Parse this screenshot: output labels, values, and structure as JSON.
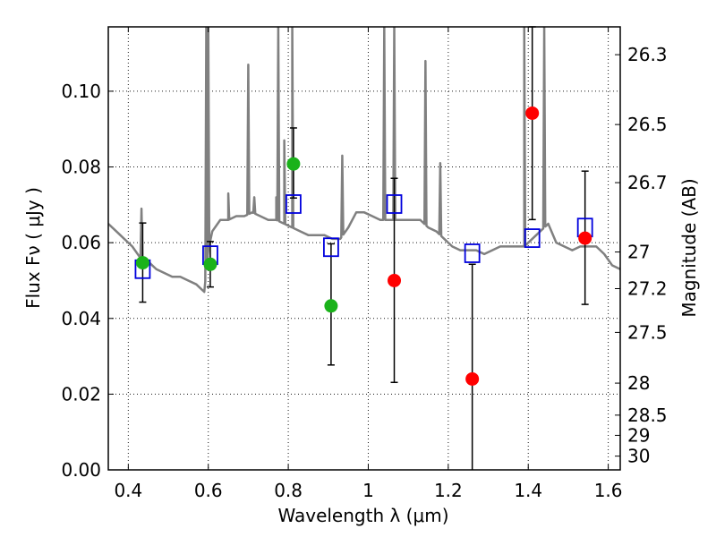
{
  "chart_data": {
    "type": "scatter",
    "xlabel": "Wavelength  λ (μm)",
    "ylabel": "Flux  Fν  ( μJy )",
    "y2label": "Magnitude (AB)",
    "xlim": [
      0.35,
      1.63
    ],
    "ylim": [
      0.0,
      0.117
    ],
    "grid": true,
    "x_ticks": [
      {
        "value": 0.4,
        "label": "0.4"
      },
      {
        "value": 0.6,
        "label": "0.6"
      },
      {
        "value": 0.8,
        "label": "0.8"
      },
      {
        "value": 1.0,
        "label": "1"
      },
      {
        "value": 1.2,
        "label": "1.2"
      },
      {
        "value": 1.4,
        "label": "1.4"
      },
      {
        "value": 1.6,
        "label": "1.6"
      }
    ],
    "y_ticks": [
      {
        "value": 0.0,
        "label": "0.00"
      },
      {
        "value": 0.02,
        "label": "0.02"
      },
      {
        "value": 0.04,
        "label": "0.04"
      },
      {
        "value": 0.06,
        "label": "0.06"
      },
      {
        "value": 0.08,
        "label": "0.08"
      },
      {
        "value": 0.1,
        "label": "0.10"
      }
    ],
    "y2_ticks": [
      {
        "value": 26.3,
        "label": "26.3"
      },
      {
        "value": 26.5,
        "label": "26.5"
      },
      {
        "value": 26.7,
        "label": "26.7"
      },
      {
        "value": 27.0,
        "label": "27"
      },
      {
        "value": 27.2,
        "label": "27.2"
      },
      {
        "value": 27.5,
        "label": "27.5"
      },
      {
        "value": 28.0,
        "label": "28"
      },
      {
        "value": 28.5,
        "label": "28.5"
      },
      {
        "value": 29.0,
        "label": "29"
      },
      {
        "value": 30.0,
        "label": "30"
      }
    ],
    "colors": {
      "spectrum": "#808080",
      "detection": "#1ab21a",
      "upper": "#ff0000",
      "model": "#0000dd",
      "errorbar": "#000000"
    },
    "spectrum": {
      "x": [
        0.35,
        0.37,
        0.39,
        0.41,
        0.43,
        0.45,
        0.47,
        0.49,
        0.51,
        0.53,
        0.55,
        0.57,
        0.58,
        0.59,
        0.6,
        0.61,
        0.63,
        0.65,
        0.67,
        0.69,
        0.71,
        0.73,
        0.75,
        0.77,
        0.79,
        0.81,
        0.83,
        0.85,
        0.87,
        0.89,
        0.91,
        0.93,
        0.95,
        0.97,
        0.99,
        1.01,
        1.03,
        1.05,
        1.07,
        1.09,
        1.11,
        1.13,
        1.15,
        1.17,
        1.19,
        1.21,
        1.23,
        1.25,
        1.27,
        1.29,
        1.31,
        1.33,
        1.35,
        1.37,
        1.39,
        1.41,
        1.43,
        1.45,
        1.47,
        1.49,
        1.51,
        1.53,
        1.55,
        1.57,
        1.59,
        1.61,
        1.63
      ],
      "y": [
        0.065,
        0.063,
        0.061,
        0.059,
        0.056,
        0.055,
        0.053,
        0.052,
        0.051,
        0.051,
        0.05,
        0.049,
        0.048,
        0.047,
        0.058,
        0.063,
        0.066,
        0.066,
        0.067,
        0.067,
        0.068,
        0.067,
        0.066,
        0.066,
        0.065,
        0.064,
        0.063,
        0.062,
        0.062,
        0.062,
        0.061,
        0.061,
        0.064,
        0.068,
        0.068,
        0.067,
        0.066,
        0.066,
        0.066,
        0.066,
        0.066,
        0.066,
        0.064,
        0.063,
        0.061,
        0.059,
        0.058,
        0.058,
        0.058,
        0.057,
        0.058,
        0.059,
        0.059,
        0.059,
        0.059,
        0.061,
        0.063,
        0.065,
        0.06,
        0.059,
        0.058,
        0.059,
        0.059,
        0.059,
        0.057,
        0.054,
        0.053
      ]
    },
    "emission_lines": [
      {
        "x": 0.433,
        "peak": 0.069
      },
      {
        "x": 0.595,
        "peak": 0.117
      },
      {
        "x": 0.6,
        "peak": 0.117
      },
      {
        "x": 0.65,
        "peak": 0.073
      },
      {
        "x": 0.7,
        "peak": 0.107
      },
      {
        "x": 0.715,
        "peak": 0.072
      },
      {
        "x": 0.77,
        "peak": 0.072
      },
      {
        "x": 0.775,
        "peak": 0.117
      },
      {
        "x": 0.79,
        "peak": 0.087
      },
      {
        "x": 0.81,
        "peak": 0.117
      },
      {
        "x": 0.935,
        "peak": 0.083
      },
      {
        "x": 1.04,
        "peak": 0.117
      },
      {
        "x": 1.065,
        "peak": 0.117
      },
      {
        "x": 1.143,
        "peak": 0.108
      },
      {
        "x": 1.18,
        "peak": 0.081
      },
      {
        "x": 1.39,
        "peak": 0.117
      },
      {
        "x": 1.44,
        "peak": 0.117
      }
    ],
    "series": [
      {
        "x": [
          0.436,
          0.605,
          0.813,
          0.907
        ],
        "y": [
          0.0547,
          0.0543,
          0.0808,
          0.0433
        ],
        "yerr_low": [
          0.0443,
          0.0483,
          0.0718,
          0.0277
        ],
        "yerr_high": [
          0.0652,
          0.0603,
          0.0903,
          0.0597
        ]
      },
      {
        "x": [
          1.065,
          1.26,
          1.41,
          1.542
        ],
        "y": [
          0.05,
          0.024,
          0.0942,
          0.0612
        ],
        "yerr_low": [
          0.0231,
          0.0,
          0.0661,
          0.0437
        ],
        "yerr_high": [
          0.077,
          0.0543,
          0.117,
          0.0789
        ]
      },
      {
        "x": [
          0.436,
          0.605,
          0.813,
          0.907,
          1.065,
          1.26,
          1.41,
          1.542
        ],
        "y": [
          0.053,
          0.0567,
          0.0702,
          0.0588,
          0.0702,
          0.0572,
          0.0612,
          0.064
        ]
      }
    ]
  }
}
